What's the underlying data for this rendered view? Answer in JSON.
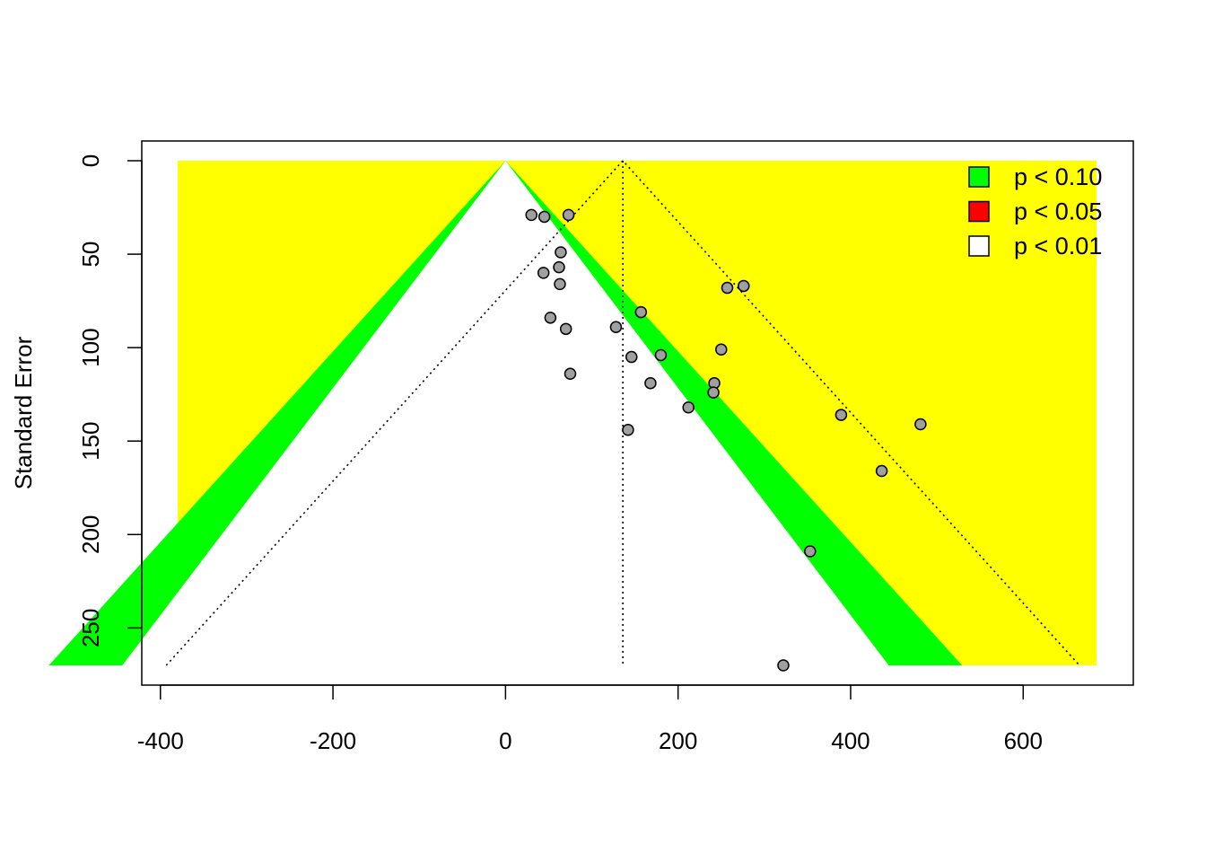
{
  "chart_data": {
    "type": "scatter",
    "subtype": "contour-enhanced funnel plot",
    "title": "",
    "xlabel": "",
    "ylabel": "Standard Error",
    "xlim": [
      -380,
      685
    ],
    "ylim": [
      0,
      270
    ],
    "y_reversed": true,
    "x_ticks": [
      -400,
      -200,
      0,
      200,
      400,
      600
    ],
    "x_tick_labels": [
      "-400",
      "-200",
      "0",
      "200",
      "400",
      "600"
    ],
    "y_ticks": [
      0,
      50,
      100,
      150,
      200,
      250
    ],
    "y_tick_labels": [
      "0",
      "50",
      "100",
      "150",
      "200",
      "250"
    ],
    "contour_center": 0,
    "z_values": {
      "p10": 1.645,
      "p05": 1.96,
      "p01": 2.576
    },
    "pooled_estimate": 136,
    "legend": {
      "placement": "top-right",
      "items": [
        {
          "label": "p < 0.10",
          "color": "#00ff00"
        },
        {
          "label": "p < 0.05",
          "color": "#ff0000"
        },
        {
          "label": "p < 0.01",
          "color": "#ffffff"
        }
      ]
    },
    "colors": {
      "outer_region": "#ffff00",
      "p10_band": "#00ff00",
      "inner": "#ffffff",
      "points": "#a0a0a0"
    },
    "points": [
      {
        "x": 30,
        "y": 29
      },
      {
        "x": 45,
        "y": 30
      },
      {
        "x": 73,
        "y": 29
      },
      {
        "x": 64,
        "y": 49
      },
      {
        "x": 44,
        "y": 60
      },
      {
        "x": 62,
        "y": 57
      },
      {
        "x": 63,
        "y": 66
      },
      {
        "x": 52,
        "y": 84
      },
      {
        "x": 70,
        "y": 90
      },
      {
        "x": 75,
        "y": 114
      },
      {
        "x": 128,
        "y": 89
      },
      {
        "x": 157,
        "y": 81
      },
      {
        "x": 146,
        "y": 105
      },
      {
        "x": 180,
        "y": 104
      },
      {
        "x": 168,
        "y": 119
      },
      {
        "x": 250,
        "y": 101
      },
      {
        "x": 242,
        "y": 119
      },
      {
        "x": 241,
        "y": 124
      },
      {
        "x": 212,
        "y": 132
      },
      {
        "x": 142,
        "y": 144
      },
      {
        "x": 257,
        "y": 68
      },
      {
        "x": 276,
        "y": 67
      },
      {
        "x": 389,
        "y": 136
      },
      {
        "x": 481,
        "y": 141
      },
      {
        "x": 436,
        "y": 166
      },
      {
        "x": 353,
        "y": 209
      },
      {
        "x": 322,
        "y": 270
      }
    ]
  }
}
